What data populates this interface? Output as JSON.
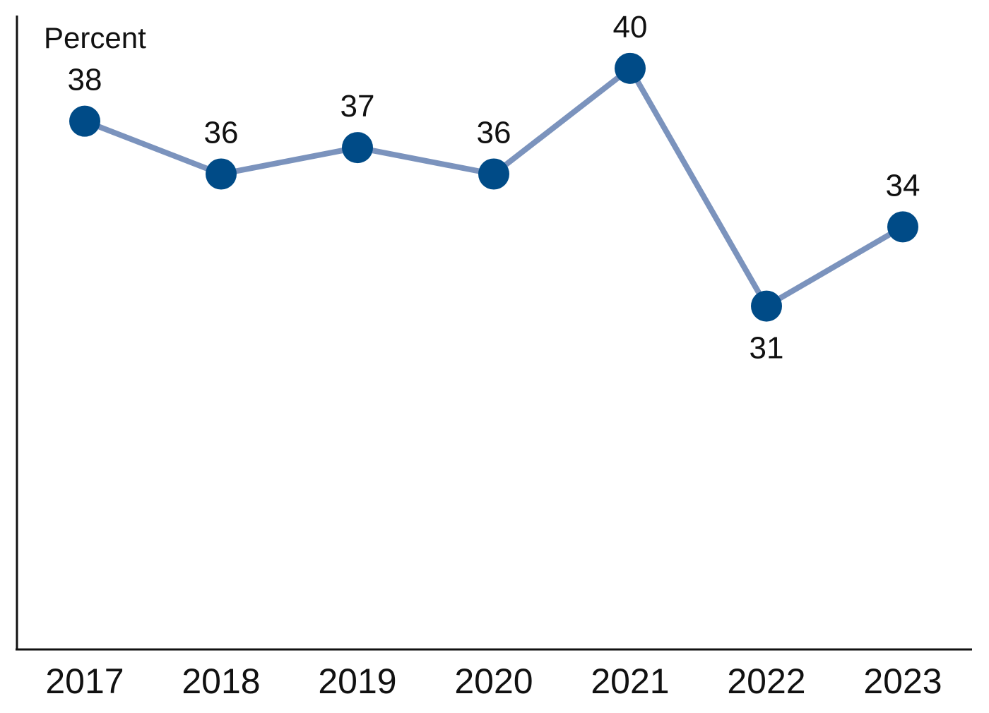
{
  "chart_data": {
    "type": "line",
    "title": "",
    "xlabel": "",
    "ylabel": "Percent",
    "categories": [
      "2017",
      "2018",
      "2019",
      "2020",
      "2021",
      "2022",
      "2023"
    ],
    "series": [
      {
        "values": [
          38,
          36,
          37,
          36,
          40,
          31,
          34
        ]
      }
    ],
    "data_labels": [
      "38",
      "36",
      "37",
      "36",
      "40",
      "31",
      "34"
    ],
    "label_positions": [
      "above",
      "above",
      "above",
      "above",
      "above",
      "below",
      "above"
    ],
    "ylim": [
      18,
      42
    ],
    "grid": false,
    "legend": "none",
    "colors": {
      "line": "#7b93bd",
      "marker": "#004b87",
      "axis": "#111111"
    }
  }
}
